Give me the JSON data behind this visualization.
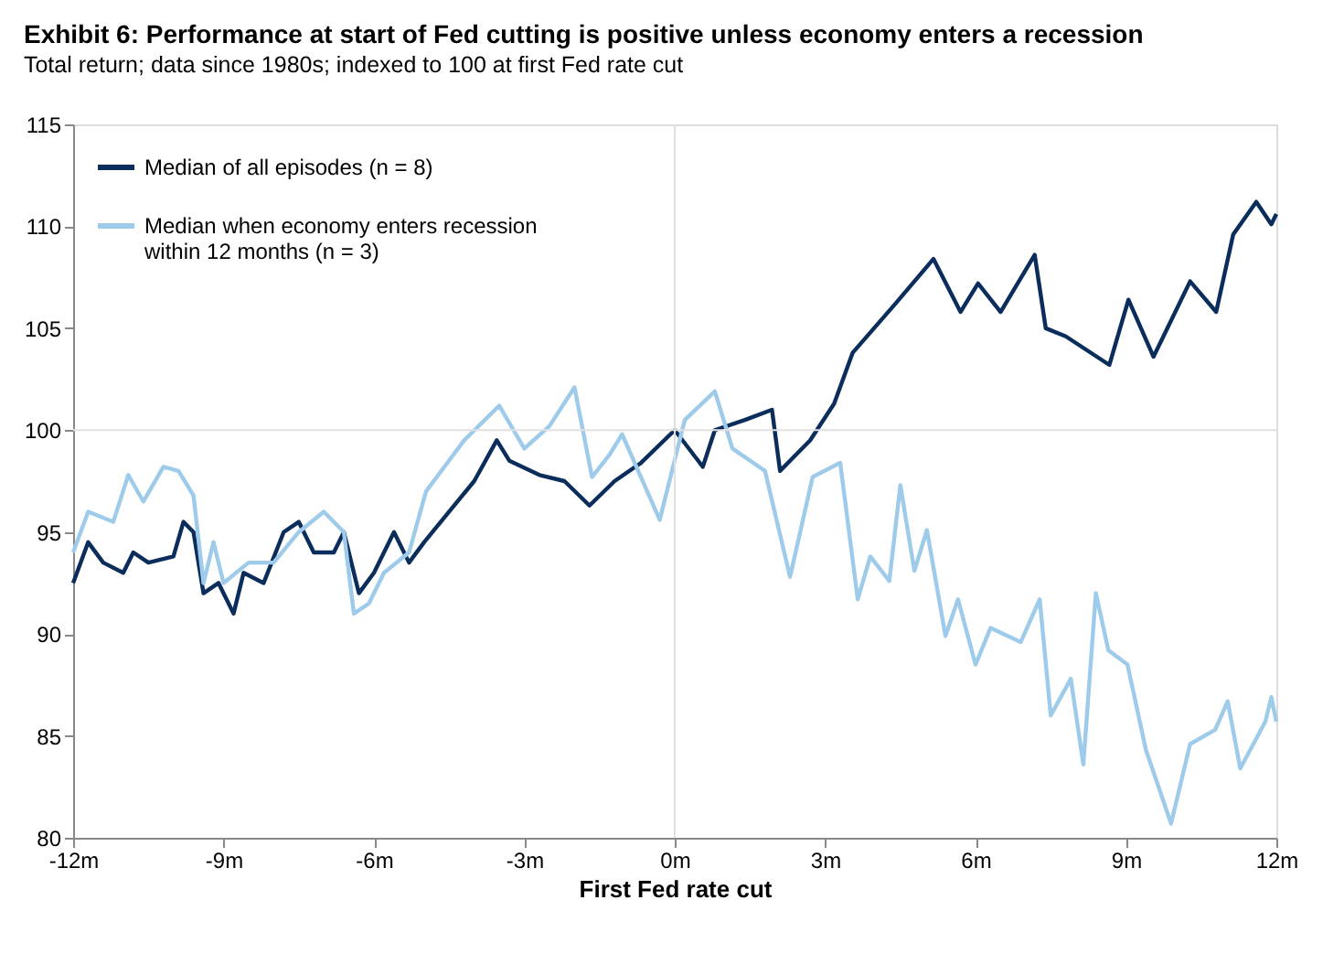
{
  "chart_data": {
    "type": "line",
    "title": "Exhibit 6: Performance at start of Fed cutting is positive unless economy enters a recession",
    "subtitle": "Total return; data since 1980s; indexed to 100 at first Fed rate cut",
    "xlabel": "First Fed rate cut",
    "xlim": [
      -12,
      12
    ],
    "xticks": [
      {
        "value": -12,
        "label": "-12m"
      },
      {
        "value": -9,
        "label": "-9m"
      },
      {
        "value": -6,
        "label": "-6m"
      },
      {
        "value": -3,
        "label": "-3m"
      },
      {
        "value": 0,
        "label": "0m"
      },
      {
        "value": 3,
        "label": "3m"
      },
      {
        "value": 6,
        "label": "6m"
      },
      {
        "value": 9,
        "label": "9m"
      },
      {
        "value": 12,
        "label": "12m"
      }
    ],
    "ylim": [
      80,
      115
    ],
    "yticks": [
      80,
      85,
      90,
      95,
      100,
      105,
      110,
      115
    ],
    "grid": false,
    "legend": "top left",
    "line_style": "solid",
    "marker": "none",
    "ref_lines": [
      {
        "axis": "y",
        "value": 100,
        "color": "#e0e0e0"
      },
      {
        "axis": "x",
        "value": 0,
        "color": "#e0e0e0"
      }
    ],
    "series": [
      {
        "name": "Median of all episodes (n = 8)",
        "color": "#0b2d5b",
        "x": [
          -12,
          -11.7,
          -11.4,
          -11,
          -10.8,
          -10.5,
          -10,
          -9.8,
          -9.6,
          -9.4,
          -9.1,
          -8.8,
          -8.6,
          -8.2,
          -7.8,
          -7.5,
          -7.2,
          -6.8,
          -6.6,
          -6.3,
          -6,
          -5.6,
          -5.3,
          -5,
          -4.5,
          -4,
          -3.55,
          -3.3,
          -2.7,
          -2.2,
          -1.7,
          -1.2,
          -0.67,
          0,
          0.56,
          0.8,
          1.4,
          1.94,
          2.1,
          2.7,
          3.18,
          3.55,
          4.4,
          5.16,
          5.7,
          6.05,
          6.5,
          7.18,
          7.4,
          7.8,
          8.67,
          9.05,
          9.55,
          10.28,
          10.8,
          11.14,
          11.6,
          11.9,
          12
        ],
        "values": [
          92.5,
          94.5,
          93.5,
          93,
          94,
          93.5,
          93.8,
          95.5,
          95,
          92,
          92.5,
          91,
          93,
          92.5,
          95,
          95.5,
          94,
          94,
          95,
          92,
          93,
          95,
          93.5,
          94.5,
          96,
          97.5,
          99.5,
          98.5,
          97.8,
          97.5,
          96.3,
          97.5,
          98.4,
          100,
          98.2,
          100,
          100.5,
          101,
          98,
          99.5,
          101.3,
          103.8,
          106.2,
          108.4,
          105.8,
          107.2,
          105.8,
          108.6,
          105,
          104.6,
          103.2,
          106.4,
          103.6,
          107.3,
          105.8,
          109.6,
          111.2,
          110.1,
          110.6
        ]
      },
      {
        "name": "Median when economy enters recession within 12 months (n = 3)",
        "color": "#9fcbeb",
        "x": [
          -12,
          -11.7,
          -11.2,
          -10.9,
          -10.6,
          -10.2,
          -9.9,
          -9.6,
          -9.4,
          -9.2,
          -9,
          -8.5,
          -8,
          -7.5,
          -7,
          -6.6,
          -6.4,
          -6.1,
          -5.8,
          -5.3,
          -4.96,
          -4.2,
          -3.5,
          -3,
          -2.5,
          -2,
          -1.65,
          -1.3,
          -1.05,
          -0.3,
          0.2,
          0.8,
          1.15,
          1.8,
          2.3,
          2.75,
          3.3,
          3.65,
          3.9,
          4.28,
          4.5,
          4.78,
          5.03,
          5.4,
          5.65,
          6,
          6.3,
          6.9,
          7.28,
          7.5,
          7.9,
          8.15,
          8.4,
          8.65,
          9.03,
          9.4,
          9.9,
          10.28,
          10.78,
          11.03,
          11.28,
          11.78,
          11.9,
          12
        ],
        "values": [
          94,
          96,
          95.5,
          97.8,
          96.5,
          98.2,
          98,
          96.8,
          92.5,
          94.5,
          92.5,
          93.5,
          93.5,
          95,
          96,
          95,
          91,
          91.5,
          93,
          94,
          97,
          99.5,
          101.2,
          99.1,
          100.2,
          102.1,
          97.7,
          98.8,
          99.8,
          95.6,
          100.5,
          101.9,
          99.1,
          98,
          92.8,
          97.7,
          98.4,
          91.7,
          93.8,
          92.6,
          97.3,
          93.1,
          95.1,
          89.9,
          91.7,
          88.5,
          90.3,
          89.6,
          91.7,
          86,
          87.8,
          83.6,
          92,
          89.2,
          88.5,
          84.3,
          80.7,
          84.6,
          85.3,
          86.7,
          83.4,
          85.7,
          86.9,
          85.7
        ]
      }
    ]
  }
}
